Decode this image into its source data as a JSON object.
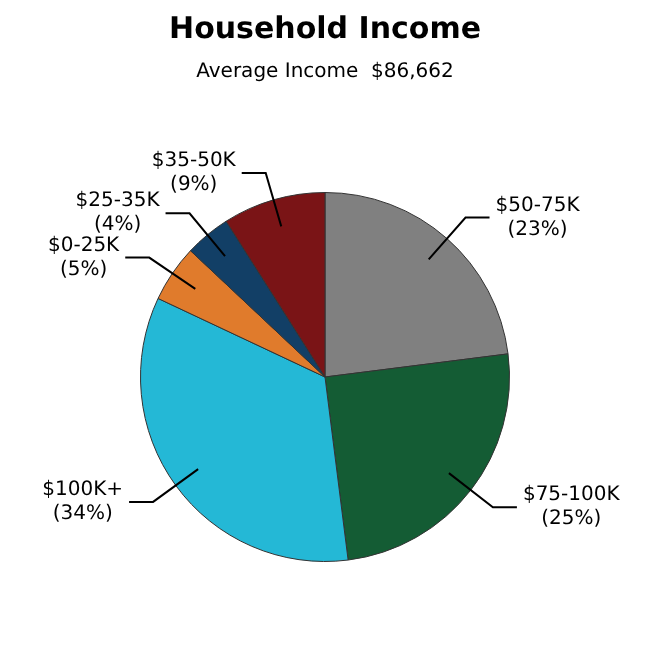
{
  "chart_data": {
    "type": "pie",
    "title": "Household Income",
    "subtitle": "Average Income  $86,662",
    "categories": [
      "$50-75K",
      "$75-100K",
      "$100K+",
      "$0-25K",
      "$25-35K",
      "$35-50K"
    ],
    "values": [
      23,
      25,
      34,
      5,
      4,
      9
    ],
    "value_labels": [
      "(23%)",
      "(25%)",
      "(34%)",
      "(5%)",
      "(4%)",
      "(9%)"
    ],
    "colors": [
      "#808080",
      "#145c34",
      "#24b8d6",
      "#e07b2c",
      "#123f66",
      "#7a1416"
    ],
    "legend": false
  }
}
